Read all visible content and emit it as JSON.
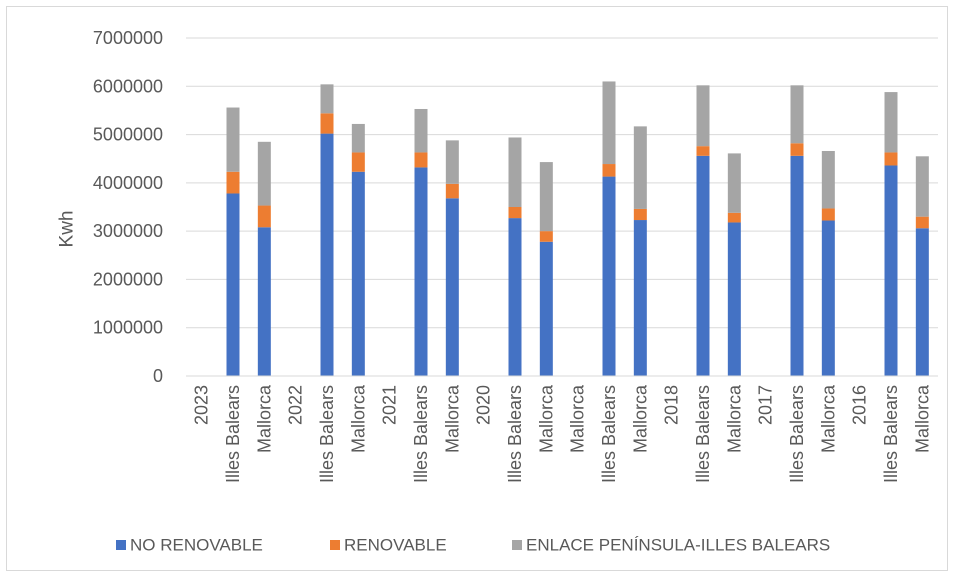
{
  "chart_data": {
    "type": "bar",
    "stacked": true,
    "title": "",
    "xlabel": "",
    "ylabel": "Kwh",
    "ylim": [
      0,
      7000000
    ],
    "yticks": [
      0,
      1000000,
      2000000,
      3000000,
      4000000,
      5000000,
      6000000,
      7000000
    ],
    "grid": true,
    "legend_position": "bottom",
    "categories": [
      "2023",
      "Illes Balears",
      "Mallorca",
      "2022",
      "Illes Balears",
      "Mallorca",
      "2021",
      "Illes Balears",
      "Mallorca",
      "2020",
      "Illes Balears",
      "Mallorca",
      "Mallorca",
      "Illes Balears",
      "Mallorca",
      "2018",
      "Illes Balears",
      "Mallorca",
      "2017",
      "Illes Balears",
      "Mallorca",
      "2016",
      "Illes Balears",
      "Mallorca"
    ],
    "series": [
      {
        "name": "NO RENOVABLE",
        "color": "#4472c4",
        "values": [
          null,
          3780000,
          3080000,
          null,
          5020000,
          4230000,
          null,
          4320000,
          3680000,
          null,
          3270000,
          2780000,
          null,
          4130000,
          3230000,
          null,
          4560000,
          3180000,
          null,
          4560000,
          3220000,
          null,
          4360000,
          3060000
        ]
      },
      {
        "name": "RENOVABLE",
        "color": "#ed7d31",
        "values": [
          null,
          450000,
          450000,
          null,
          420000,
          400000,
          null,
          310000,
          300000,
          null,
          230000,
          220000,
          null,
          260000,
          230000,
          null,
          200000,
          200000,
          null,
          260000,
          250000,
          null,
          270000,
          240000
        ]
      },
      {
        "name": "ENLACE PENÍNSULA-ILLES BALEARS",
        "color": "#a5a5a5",
        "values": [
          null,
          1330000,
          1320000,
          null,
          600000,
          590000,
          null,
          900000,
          900000,
          null,
          1440000,
          1430000,
          null,
          1710000,
          1710000,
          null,
          1260000,
          1230000,
          null,
          1200000,
          1190000,
          null,
          1250000,
          1250000
        ]
      }
    ]
  }
}
